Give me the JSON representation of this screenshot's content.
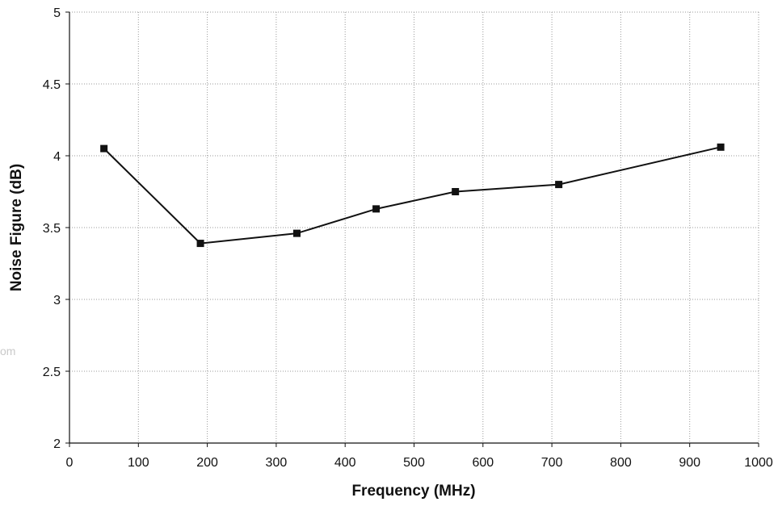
{
  "chart_data": {
    "type": "line",
    "title": "",
    "xlabel": "Frequency (MHz)",
    "ylabel": "Noise Figure (dB)",
    "xlim": [
      0,
      1000
    ],
    "ylim": [
      2,
      5
    ],
    "xticks": [
      0,
      100,
      200,
      300,
      400,
      500,
      600,
      700,
      800,
      900,
      1000
    ],
    "yticks": [
      2,
      2.5,
      3,
      3.5,
      4,
      4.5,
      5
    ],
    "grid": true,
    "legend": "none",
    "series": [
      {
        "marker": "square",
        "color": "#111111",
        "x": [
          50,
          190,
          330,
          445,
          560,
          710,
          945
        ],
        "y": [
          4.05,
          3.39,
          3.46,
          3.63,
          3.75,
          3.8,
          4.06
        ]
      }
    ]
  },
  "watermark": "om"
}
